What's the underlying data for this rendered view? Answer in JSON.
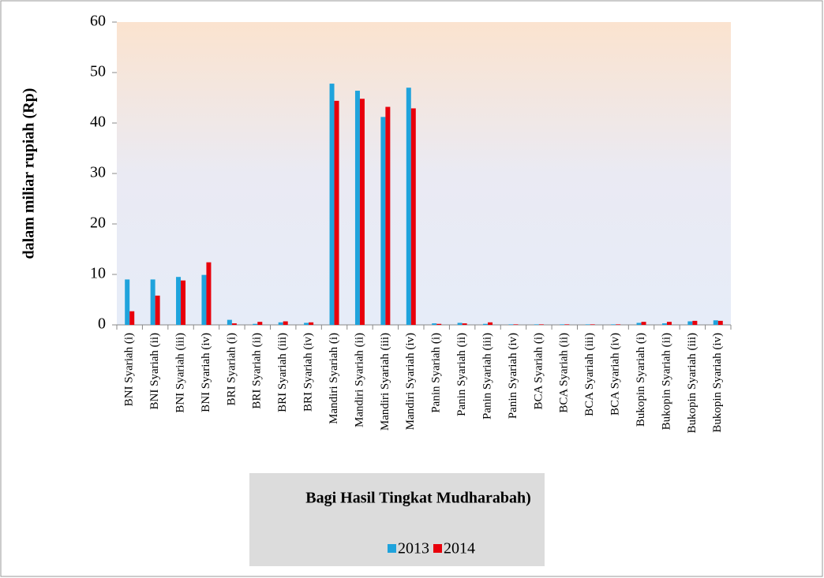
{
  "chart_data": {
    "type": "bar",
    "x_label": "Bagi Hasil Tingkat Mudharabah)",
    "y_label": "dalam miliar rupiah (Rp)",
    "categories": [
      "BNI Syariah (i)",
      "BNI Syariah (ii)",
      "BNI Syariah (iii)",
      "BNI Syariah (iv)",
      "BRI Syariah (i)",
      "BRI Syariah (ii)",
      "BRI Syariah (iii)",
      "BRI Syariah (iv)",
      "Mandiri Syariah (i)",
      "Mandiri Syariah (ii)",
      "Mandiri Syariah (iii)",
      "Mandiri Syariah (iv)",
      "Panin Syariah (i)",
      "Panin Syariah (ii)",
      "Panin Syariah (iii)",
      "Panin Syariah (iv)",
      "BCA Syariah (i)",
      "BCA Syariah (ii)",
      "BCA Syariah (iii)",
      "BCA Syariah (iv)",
      "Bukopin Syariah (i)",
      "Bukopin Syariah (ii)",
      "Bukopin Syariah (iii)",
      "Bukopin Syariah (iv)"
    ],
    "series": [
      {
        "name": "2013",
        "color": "#1fa3dc",
        "values": [
          9.0,
          9.0,
          9.5,
          9.9,
          1.0,
          0.2,
          0.5,
          0.4,
          47.8,
          46.4,
          41.2,
          47.0,
          0.3,
          0.4,
          0.2,
          0.1,
          0.1,
          0.1,
          0.1,
          0.1,
          0.4,
          0.3,
          0.7,
          0.9
        ]
      },
      {
        "name": "2014",
        "color": "#e8000b",
        "values": [
          2.7,
          5.8,
          8.8,
          12.4,
          0.3,
          0.6,
          0.7,
          0.5,
          44.4,
          44.8,
          43.2,
          42.9,
          0.2,
          0.3,
          0.5,
          0.1,
          0.1,
          0.1,
          0.1,
          0.1,
          0.6,
          0.6,
          0.8,
          0.8
        ]
      }
    ],
    "ylim": [
      0,
      60
    ],
    "yticks": [
      0,
      10,
      20,
      30,
      40,
      50,
      60
    ]
  }
}
